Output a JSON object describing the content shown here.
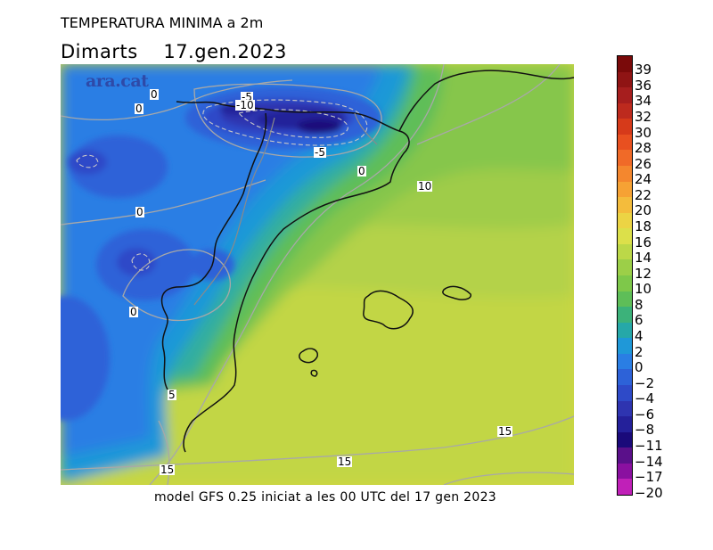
{
  "header": {
    "title": "TEMPERATURA MINIMA a 2m",
    "subtitle": "Dimarts    17.gen.2023"
  },
  "map": {
    "watermark": "ara.cat",
    "contour_labels": [
      {
        "text": "0"
      },
      {
        "text": "0"
      },
      {
        "text": "-5"
      },
      {
        "text": "-10"
      },
      {
        "text": "-5"
      },
      {
        "text": "0"
      },
      {
        "text": "0"
      },
      {
        "text": "10"
      },
      {
        "text": "0"
      },
      {
        "text": "5"
      },
      {
        "text": "15"
      },
      {
        "text": "15"
      },
      {
        "text": "15"
      }
    ]
  },
  "caption": "model GFS 0.25 iniciat a les 00 UTC del 17 gen 2023",
  "legend": {
    "levels": [
      "39",
      "36",
      "34",
      "32",
      "30",
      "28",
      "26",
      "24",
      "22",
      "20",
      "18",
      "16",
      "14",
      "12",
      "10",
      "8",
      "6",
      "4",
      "2",
      "0",
      "−2",
      "−4",
      "−6",
      "−8",
      "−11",
      "−14",
      "−17",
      "−20"
    ],
    "colors": [
      "#7a0a0a",
      "#8f1414",
      "#a61e1e",
      "#bd2a1e",
      "#d63a1a",
      "#e85020",
      "#f06a28",
      "#f4872e",
      "#f6a234",
      "#f4bc3c",
      "#ecd444",
      "#dce04a",
      "#bcd848",
      "#9ccf48",
      "#7ec84a",
      "#5ebe58",
      "#3cb27a",
      "#26a8a8",
      "#1f98d8",
      "#2a7ee4",
      "#2d62d8",
      "#2e4ac8",
      "#2e34b0",
      "#24209a",
      "#1a0a7a",
      "#5a108a",
      "#8a10a0",
      "#c020b8"
    ]
  }
}
